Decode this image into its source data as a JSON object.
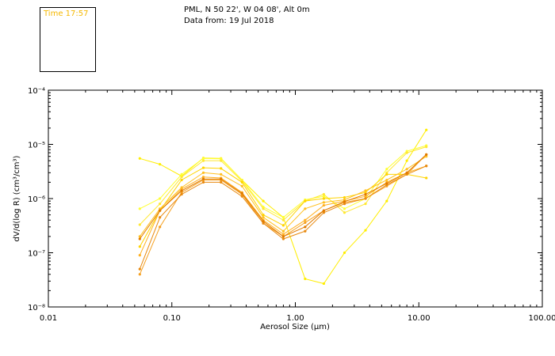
{
  "legend": {
    "time_label": "Time 17:57"
  },
  "header": {
    "location": "PML, N 50 22', W 04 08', Alt 0m",
    "date": "Data from: 19 Jul 2018"
  },
  "chart_data": {
    "type": "line",
    "x_scale": "log",
    "y_scale": "log",
    "xlabel": "Aerosol Size (µm)",
    "ylabel": "dV/d(log R) (cm³/cm³)",
    "xlim": [
      0.01,
      100
    ],
    "ylim": [
      1e-08,
      0.0001
    ],
    "x_ticks": [
      "0.01",
      "0.10",
      "1.00",
      "10.00",
      "100.00"
    ],
    "y_ticks": [
      "10⁻⁸",
      "10⁻⁷",
      "10⁻⁶",
      "10⁻⁵",
      "10⁻⁴"
    ],
    "x": [
      0.055,
      0.08,
      0.12,
      0.18,
      0.25,
      0.37,
      0.55,
      0.8,
      1.2,
      1.7,
      2.5,
      3.7,
      5.5,
      8.0,
      11.5
    ],
    "series": [
      {
        "color": "#ffee00",
        "values": [
          5.5e-06,
          4.3e-06,
          2.6e-06,
          5.6e-06,
          5.5e-06,
          2.2e-06,
          9e-07,
          4.5e-07,
          3.3e-08,
          2.7e-08,
          1e-07,
          2.6e-07,
          9e-07,
          5e-06,
          1.85e-05
        ]
      },
      {
        "color": "#ffff33",
        "values": [
          6.5e-07,
          1e-06,
          2.8e-06,
          5.5e-06,
          5.4e-06,
          2.2e-06,
          7e-07,
          4.5e-07,
          9.5e-07,
          1.1e-06,
          6.5e-07,
          1e-06,
          3.5e-06,
          7.5e-06,
          9.5e-06
        ]
      },
      {
        "color": "#ffe833",
        "values": [
          3.3e-07,
          8e-07,
          2.5e-06,
          5e-06,
          5e-06,
          2.1e-06,
          6.5e-07,
          4e-07,
          9e-07,
          1.2e-06,
          5.5e-07,
          8e-07,
          3e-06,
          7e-06,
          9e-06
        ]
      },
      {
        "color": "#ffd400",
        "values": [
          1.3e-07,
          6e-07,
          2.2e-06,
          3.7e-06,
          3.6e-06,
          2e-06,
          5e-07,
          3.2e-07,
          9e-07,
          1e-06,
          1.05e-06,
          1.3e-06,
          2.8e-06,
          2.8e-06,
          2.4e-06
        ]
      },
      {
        "color": "#ffc020",
        "values": [
          2e-07,
          6.5e-07,
          1.6e-06,
          3e-06,
          2.8e-06,
          1.7e-06,
          4.5e-07,
          2.5e-07,
          6.5e-07,
          8.5e-07,
          9.5e-07,
          1.4e-06,
          2.2e-06,
          3.5e-06,
          6e-06
        ]
      },
      {
        "color": "#ffb020",
        "values": [
          9e-08,
          6e-07,
          1.5e-06,
          2.5e-06,
          2.4e-06,
          1.3e-06,
          4e-07,
          2.2e-07,
          4e-07,
          7.5e-07,
          9e-07,
          1.1e-06,
          2e-06,
          3e-06,
          4e-06
        ]
      },
      {
        "color": "#f5a020",
        "values": [
          4e-08,
          3e-07,
          1.3e-06,
          2.2e-06,
          2.2e-06,
          1.2e-06,
          3.5e-07,
          2e-07,
          3.6e-07,
          6e-07,
          8.5e-07,
          1e-06,
          1.7e-06,
          2.8e-06,
          6.5e-06
        ]
      },
      {
        "color": "#e88a10",
        "values": [
          5e-08,
          4.5e-07,
          1.2e-06,
          2e-06,
          2e-06,
          1.1e-06,
          3.5e-07,
          1.8e-07,
          2.5e-07,
          5.5e-07,
          8e-07,
          1e-06,
          1.8e-06,
          2.8e-06,
          4e-06
        ]
      },
      {
        "color": "#e07a00",
        "values": [
          1.8e-07,
          6e-07,
          1.4e-06,
          2.3e-06,
          2.3e-06,
          1.25e-06,
          3.8e-07,
          2e-07,
          3e-07,
          6e-07,
          8.8e-07,
          1.2e-06,
          1.9e-06,
          3e-06,
          6.5e-06
        ]
      }
    ]
  }
}
